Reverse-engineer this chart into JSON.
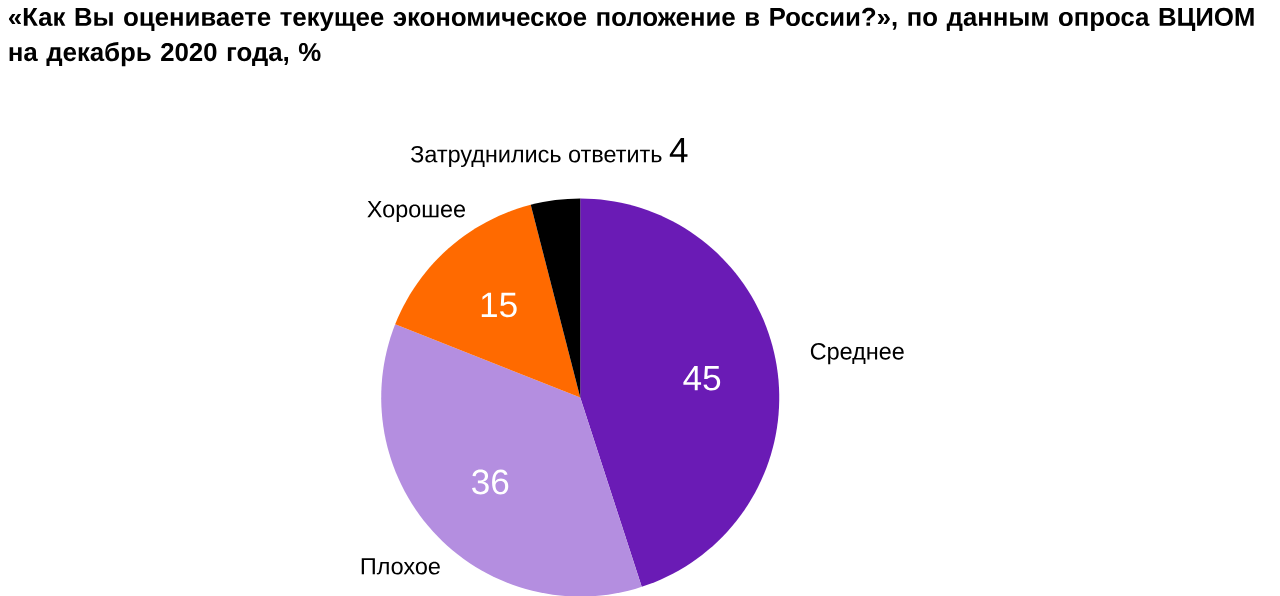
{
  "chart_data": {
    "type": "pie",
    "title": "«Как Вы оцениваете текущее экономическое положение в России?», по данным опроса ВЦИОМ на декабрь 2020 года, %",
    "categories": [
      "Среднее",
      "Плохое",
      "Хорошее",
      "Затруднились ответить"
    ],
    "values": [
      45,
      36,
      15,
      4
    ],
    "colors": [
      "#6a1bb5",
      "#b48ee0",
      "#ff6a00",
      "#000000"
    ],
    "data_labels": true
  }
}
